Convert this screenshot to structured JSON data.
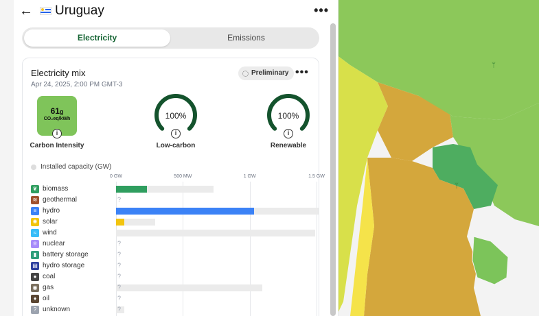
{
  "header": {
    "back_icon": "arrow-left-icon",
    "country": "Uruguay",
    "flag_icon": "uruguay-flag-icon",
    "menu_icon": "more-horizontal-icon"
  },
  "tabs": [
    {
      "label": "Electricity",
      "active": true
    },
    {
      "label": "Emissions",
      "active": false
    }
  ],
  "card": {
    "title": "Electricity mix",
    "date": "Apr 24, 2025, 2:00 PM GMT-3",
    "badge": "Preliminary",
    "carbon": {
      "value": "61",
      "unit_suffix": "g",
      "unit": "CO₂eq/kWh",
      "label": "Carbon Intensity",
      "color": "#7fc45a"
    },
    "low_carbon": {
      "value": "100%",
      "fraction": 1.0,
      "label": "Low-carbon"
    },
    "renewable": {
      "value": "100%",
      "fraction": 1.0,
      "label": "Renewable"
    },
    "gauge_color": "#14532d"
  },
  "capacity_legend": "Installed capacity (GW)",
  "axis": {
    "ticks": [
      "0 GW",
      "500 MW",
      "1 GW",
      "1.5 GW"
    ],
    "tick_values": [
      0,
      500,
      1000,
      1500
    ],
    "max": 1500
  },
  "sources": [
    {
      "name": "biomass",
      "icon": "leaf-icon",
      "color": "#2f9e5f",
      "production": 230,
      "capacity": 730,
      "unknown": false
    },
    {
      "name": "geothermal",
      "icon": "heat-icon",
      "color": "#a0522d",
      "production": null,
      "capacity": null,
      "unknown": true
    },
    {
      "name": "hydro",
      "icon": "water-icon",
      "color": "#3b82f6",
      "production": 1035,
      "capacity": 1515,
      "unknown": false
    },
    {
      "name": "solar",
      "icon": "sun-icon",
      "color": "#f2c40f",
      "production": 60,
      "capacity": 295,
      "unknown": false
    },
    {
      "name": "wind",
      "icon": "wind-icon",
      "color": "#38bdf8",
      "production": 0,
      "capacity": 1490,
      "unknown": false
    },
    {
      "name": "nuclear",
      "icon": "atom-icon",
      "color": "#a78bfa",
      "production": null,
      "capacity": null,
      "unknown": true
    },
    {
      "name": "battery storage",
      "icon": "battery-icon",
      "color": "#2e9e7a",
      "production": null,
      "capacity": null,
      "unknown": true
    },
    {
      "name": "hydro storage",
      "icon": "pump-icon",
      "color": "#2c3e9e",
      "production": null,
      "capacity": null,
      "unknown": true
    },
    {
      "name": "coal",
      "icon": "coal-icon",
      "color": "#444444",
      "production": null,
      "capacity": null,
      "unknown": true
    },
    {
      "name": "gas",
      "icon": "flame-icon",
      "color": "#7a6f5e",
      "production": null,
      "capacity": 1095,
      "unknown": true
    },
    {
      "name": "oil",
      "icon": "oil-drop-icon",
      "color": "#5a4632",
      "production": null,
      "capacity": null,
      "unknown": true
    },
    {
      "name": "unknown",
      "icon": "question-icon",
      "color": "#9ca3af",
      "production": null,
      "capacity": 60,
      "unknown": true
    }
  ],
  "unknown_mark": "?",
  "map": {
    "colors": {
      "low": "#7cc45a",
      "lowest": "#4fab5f",
      "mid": "#d7a93b",
      "high": "#f3e24a",
      "bg": "#f2f2f2"
    }
  }
}
